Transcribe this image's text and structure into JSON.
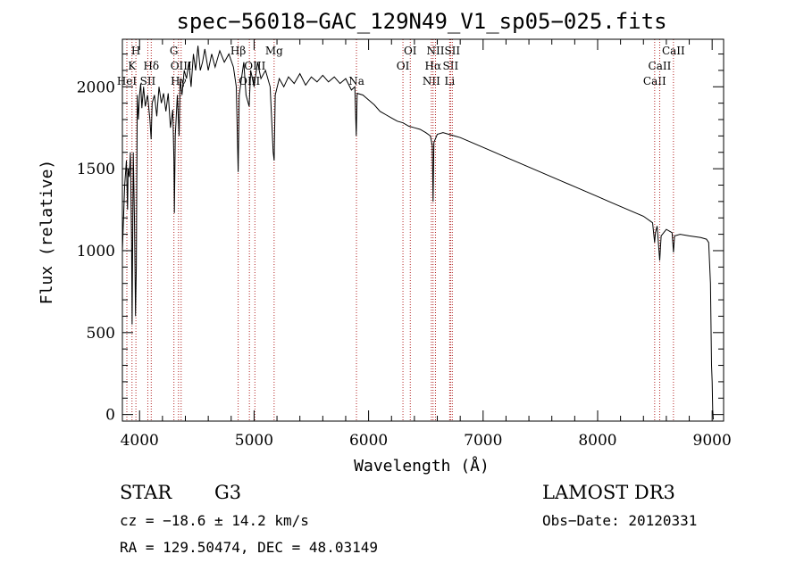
{
  "chart_data": {
    "type": "line",
    "title": "spec−56018−GAC_129N49_V1_sp05−025.fits",
    "xlabel": "Wavelength (Å)",
    "ylabel": "Flux (relative)",
    "xlim": [
      3850,
      9100
    ],
    "ylim": [
      -40,
      2290
    ],
    "xticks": [
      4000,
      5000,
      6000,
      7000,
      8000,
      9000
    ],
    "yticks": [
      0,
      500,
      1000,
      1500,
      2000
    ],
    "series": [
      {
        "name": "flux",
        "points": [
          [
            3850,
            1000
          ],
          [
            3870,
            1400
          ],
          [
            3885,
            1550
          ],
          [
            3895,
            1250
          ],
          [
            3900,
            1500
          ],
          [
            3910,
            1450
          ],
          [
            3920,
            1600
          ],
          [
            3930,
            1050
          ],
          [
            3935,
            550
          ],
          [
            3945,
            1600
          ],
          [
            3955,
            1200
          ],
          [
            3965,
            600
          ],
          [
            3972,
            900
          ],
          [
            3980,
            1950
          ],
          [
            3990,
            1800
          ],
          [
            4000,
            1950
          ],
          [
            4010,
            2020
          ],
          [
            4020,
            1870
          ],
          [
            4035,
            2000
          ],
          [
            4050,
            1880
          ],
          [
            4070,
            1950
          ],
          [
            4090,
            1800
          ],
          [
            4101,
            1680
          ],
          [
            4110,
            1900
          ],
          [
            4130,
            1950
          ],
          [
            4150,
            1820
          ],
          [
            4170,
            2000
          ],
          [
            4190,
            1900
          ],
          [
            4210,
            1960
          ],
          [
            4230,
            1850
          ],
          [
            4250,
            1960
          ],
          [
            4270,
            1750
          ],
          [
            4290,
            1860
          ],
          [
            4300,
            1550
          ],
          [
            4304,
            1230
          ],
          [
            4312,
            1700
          ],
          [
            4330,
            1950
          ],
          [
            4345,
            1700
          ],
          [
            4355,
            2050
          ],
          [
            4370,
            1950
          ],
          [
            4390,
            2100
          ],
          [
            4410,
            2050
          ],
          [
            4430,
            2150
          ],
          [
            4450,
            2000
          ],
          [
            4470,
            2200
          ],
          [
            4490,
            2100
          ],
          [
            4510,
            2250
          ],
          [
            4530,
            2100
          ],
          [
            4550,
            2150
          ],
          [
            4570,
            2230
          ],
          [
            4600,
            2100
          ],
          [
            4630,
            2200
          ],
          [
            4660,
            2120
          ],
          [
            4700,
            2220
          ],
          [
            4740,
            2150
          ],
          [
            4780,
            2200
          ],
          [
            4820,
            2120
          ],
          [
            4845,
            2000
          ],
          [
            4861,
            1480
          ],
          [
            4870,
            1950
          ],
          [
            4890,
            2050
          ],
          [
            4910,
            2150
          ],
          [
            4930,
            1950
          ],
          [
            4957,
            1880
          ],
          [
            4970,
            2100
          ],
          [
            5000,
            2000
          ],
          [
            5030,
            2150
          ],
          [
            5060,
            2050
          ],
          [
            5100,
            2100
          ],
          [
            5140,
            2000
          ],
          [
            5167,
            1600
          ],
          [
            5175,
            1550
          ],
          [
            5185,
            1950
          ],
          [
            5220,
            2050
          ],
          [
            5260,
            2000
          ],
          [
            5300,
            2060
          ],
          [
            5350,
            2020
          ],
          [
            5400,
            2080
          ],
          [
            5450,
            2010
          ],
          [
            5500,
            2060
          ],
          [
            5550,
            2030
          ],
          [
            5600,
            2070
          ],
          [
            5650,
            2030
          ],
          [
            5700,
            2060
          ],
          [
            5750,
            2020
          ],
          [
            5800,
            2050
          ],
          [
            5850,
            1980
          ],
          [
            5880,
            2000
          ],
          [
            5892,
            1700
          ],
          [
            5900,
            1960
          ],
          [
            5950,
            1950
          ],
          [
            6000,
            1920
          ],
          [
            6050,
            1890
          ],
          [
            6100,
            1850
          ],
          [
            6150,
            1830
          ],
          [
            6200,
            1810
          ],
          [
            6250,
            1790
          ],
          [
            6300,
            1780
          ],
          [
            6350,
            1760
          ],
          [
            6400,
            1750
          ],
          [
            6450,
            1740
          ],
          [
            6500,
            1720
          ],
          [
            6540,
            1700
          ],
          [
            6556,
            1640
          ],
          [
            6563,
            1300
          ],
          [
            6570,
            1660
          ],
          [
            6600,
            1710
          ],
          [
            6650,
            1720
          ],
          [
            6700,
            1710
          ],
          [
            6750,
            1700
          ],
          [
            6800,
            1690
          ],
          [
            6900,
            1660
          ],
          [
            7000,
            1630
          ],
          [
            7100,
            1600
          ],
          [
            7200,
            1570
          ],
          [
            7300,
            1540
          ],
          [
            7400,
            1510
          ],
          [
            7500,
            1480
          ],
          [
            7600,
            1450
          ],
          [
            7700,
            1420
          ],
          [
            7800,
            1390
          ],
          [
            7900,
            1360
          ],
          [
            8000,
            1330
          ],
          [
            8100,
            1300
          ],
          [
            8200,
            1270
          ],
          [
            8300,
            1240
          ],
          [
            8400,
            1210
          ],
          [
            8480,
            1170
          ],
          [
            8498,
            1050
          ],
          [
            8505,
            1110
          ],
          [
            8520,
            1150
          ],
          [
            8542,
            940
          ],
          [
            8555,
            1090
          ],
          [
            8600,
            1130
          ],
          [
            8650,
            1110
          ],
          [
            8662,
            990
          ],
          [
            8672,
            1090
          ],
          [
            8720,
            1100
          ],
          [
            8800,
            1090
          ],
          [
            8900,
            1080
          ],
          [
            8950,
            1070
          ],
          [
            8970,
            1050
          ],
          [
            8985,
            800
          ],
          [
            8995,
            300
          ],
          [
            9000,
            200
          ],
          [
            9005,
            30
          ],
          [
            9010,
            -30
          ]
        ]
      }
    ],
    "line_marks": [
      {
        "wl": 3889,
        "label": "HeI",
        "row": 3
      },
      {
        "wl": 3934,
        "label": "K",
        "row": 2
      },
      {
        "wl": 3968,
        "label": "H",
        "row": 1
      },
      {
        "wl": 4072,
        "label": "SII",
        "row": 3
      },
      {
        "wl": 4102,
        "label": "Hδ",
        "row": 2
      },
      {
        "wl": 4300,
        "label": "G",
        "row": 1
      },
      {
        "wl": 4340,
        "label": "Hγ",
        "row": 3
      },
      {
        "wl": 4363,
        "label": "OIII",
        "row": 2
      },
      {
        "wl": 4861,
        "label": "Hβ",
        "row": 1
      },
      {
        "wl": 4959,
        "label": "OIII",
        "row": 3
      },
      {
        "wl": 5007,
        "label": "OIII",
        "row": 2
      },
      {
        "wl": 5175,
        "label": "Mg",
        "row": 1
      },
      {
        "wl": 5894,
        "label": "Na",
        "row": 3
      },
      {
        "wl": 6300,
        "label": "OI",
        "row": 2
      },
      {
        "wl": 6364,
        "label": "OI",
        "row": 1
      },
      {
        "wl": 6548,
        "label": "NII",
        "row": 3
      },
      {
        "wl": 6563,
        "label": "Hα",
        "row": 2
      },
      {
        "wl": 6584,
        "label": "NII",
        "row": 1
      },
      {
        "wl": 6708,
        "label": "Li",
        "row": 3
      },
      {
        "wl": 6716,
        "label": "SII",
        "row": 2
      },
      {
        "wl": 6731,
        "label": "SII",
        "row": 1
      },
      {
        "wl": 8498,
        "label": "CaII",
        "row": 3
      },
      {
        "wl": 8542,
        "label": "CaII",
        "row": 2
      },
      {
        "wl": 8662,
        "label": "CaII",
        "row": 1
      }
    ],
    "line_color": "#b22222"
  },
  "info": {
    "object_class": "STAR",
    "subclass": "G3",
    "redshift": "cz = −18.6 ± 14.2 km/s",
    "coords": "RA = 129.50474, DEC =  48.03149",
    "survey": "LAMOST DR3",
    "obs_date": "Obs−Date: 20120331"
  }
}
